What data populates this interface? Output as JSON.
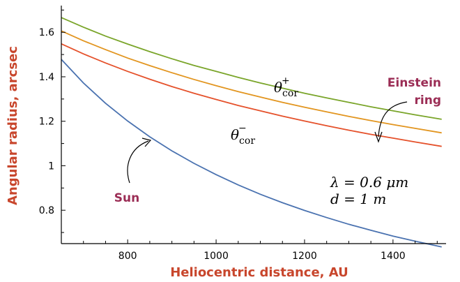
{
  "chart_data": {
    "type": "line",
    "xlabel": "Heliocentric distance, AU",
    "ylabel": "Angular radius, arcsec",
    "xlim": [
      650,
      1520
    ],
    "ylim": [
      0.65,
      1.72
    ],
    "xticks": [
      800,
      1000,
      1200,
      1400
    ],
    "xtick_labels": [
      "800",
      "1000",
      "1200",
      "1400"
    ],
    "yticks": [
      0.8,
      1.0,
      1.2,
      1.4,
      1.6
    ],
    "ytick_labels": [
      "0.8",
      "1",
      "1.2",
      "1.4",
      "1.6"
    ],
    "grid": false,
    "series": [
      {
        "name": "θ_cor^+",
        "color": "#7aa52a",
        "x": [
          650,
          700,
          750,
          800,
          850,
          900,
          950,
          1000,
          1050,
          1100,
          1150,
          1200,
          1250,
          1300,
          1350,
          1400,
          1450,
          1510
        ],
        "y": [
          1.666,
          1.623,
          1.583,
          1.547,
          1.513,
          1.481,
          1.451,
          1.424,
          1.397,
          1.372,
          1.349,
          1.326,
          1.305,
          1.285,
          1.265,
          1.247,
          1.229,
          1.209
        ]
      },
      {
        "name": "Einstein ring",
        "color": "#e2951f",
        "x": [
          650,
          700,
          750,
          800,
          850,
          900,
          950,
          1000,
          1050,
          1100,
          1150,
          1200,
          1250,
          1300,
          1350,
          1400,
          1450,
          1510
        ],
        "y": [
          1.606,
          1.562,
          1.522,
          1.484,
          1.45,
          1.418,
          1.388,
          1.36,
          1.333,
          1.309,
          1.285,
          1.263,
          1.242,
          1.222,
          1.203,
          1.185,
          1.168,
          1.148
        ]
      },
      {
        "name": "θ_cor^−",
        "color": "#e5512b",
        "x": [
          650,
          700,
          750,
          800,
          850,
          900,
          950,
          1000,
          1050,
          1100,
          1150,
          1200,
          1250,
          1300,
          1350,
          1400,
          1450,
          1510
        ],
        "y": [
          1.548,
          1.503,
          1.462,
          1.424,
          1.389,
          1.356,
          1.326,
          1.298,
          1.271,
          1.247,
          1.223,
          1.201,
          1.18,
          1.16,
          1.141,
          1.124,
          1.107,
          1.087
        ]
      },
      {
        "name": "Sun",
        "color": "#4a72b0",
        "x": [
          650,
          700,
          750,
          800,
          850,
          900,
          950,
          1000,
          1050,
          1100,
          1150,
          1200,
          1250,
          1300,
          1350,
          1400,
          1450,
          1510
        ],
        "y": [
          1.478,
          1.372,
          1.281,
          1.201,
          1.13,
          1.067,
          1.011,
          0.96,
          0.914,
          0.872,
          0.834,
          0.799,
          0.767,
          0.737,
          0.71,
          0.684,
          0.661,
          0.635
        ]
      }
    ],
    "annotations": {
      "theta_plus": {
        "symbol": "θ",
        "sub": "cor",
        "sup": "+"
      },
      "theta_minus": {
        "symbol": "θ",
        "sub": "cor",
        "sup": "−"
      },
      "einstein_line1": "Einstein",
      "einstein_line2": "ring",
      "sun": "Sun",
      "lambda_line": "λ = 0.6 μm",
      "d_line": "d = 1 m"
    }
  }
}
